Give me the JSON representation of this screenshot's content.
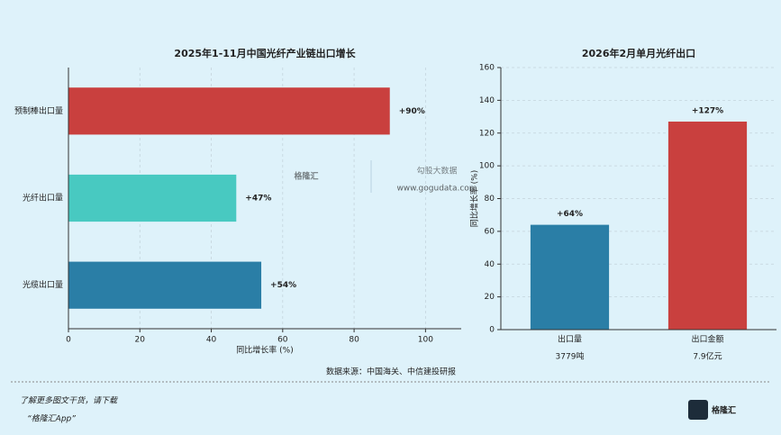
{
  "chart_data": [
    {
      "type": "barh",
      "title": "2025年1-11月中国光纤产业链出口增长",
      "categories": [
        "预制棒出口量",
        "光纤出口量",
        "光缆出口量"
      ],
      "values": [
        90,
        47,
        54
      ],
      "value_labels": [
        "+90%",
        "+47%",
        "+54%"
      ],
      "colors": [
        "#c9403e",
        "#48c9c1",
        "#2a7ea6"
      ],
      "xlim": [
        0,
        110
      ],
      "xticks": [
        0,
        20,
        40,
        60,
        80,
        100
      ],
      "xlabel": "同比增长率 (%)",
      "grid": true
    },
    {
      "type": "bar",
      "title": "2026年2月单月光纤出口",
      "categories": [
        "出口量",
        "出口金额"
      ],
      "category_notes": [
        "3779吨",
        "7.9亿元"
      ],
      "values": [
        64,
        127
      ],
      "value_labels": [
        "+64%",
        "+127%"
      ],
      "colors": [
        "#2a7ea6",
        "#c9403e"
      ],
      "ylim": [
        0,
        160
      ],
      "yticks": [
        0,
        20,
        40,
        60,
        80,
        100,
        120,
        140,
        160
      ],
      "ylabel": "同比增长率 (%)",
      "grid": true
    }
  ],
  "source": "数据来源：中国海关、中信建投研报",
  "watermark": {
    "brand": "格隆汇",
    "site_name": "勾股大数据",
    "url": "www.gogudata.com"
  },
  "footer": {
    "line1": "了解更多图文干货，请下载",
    "line2": "“格隆汇App”",
    "logo": "格隆汇"
  }
}
